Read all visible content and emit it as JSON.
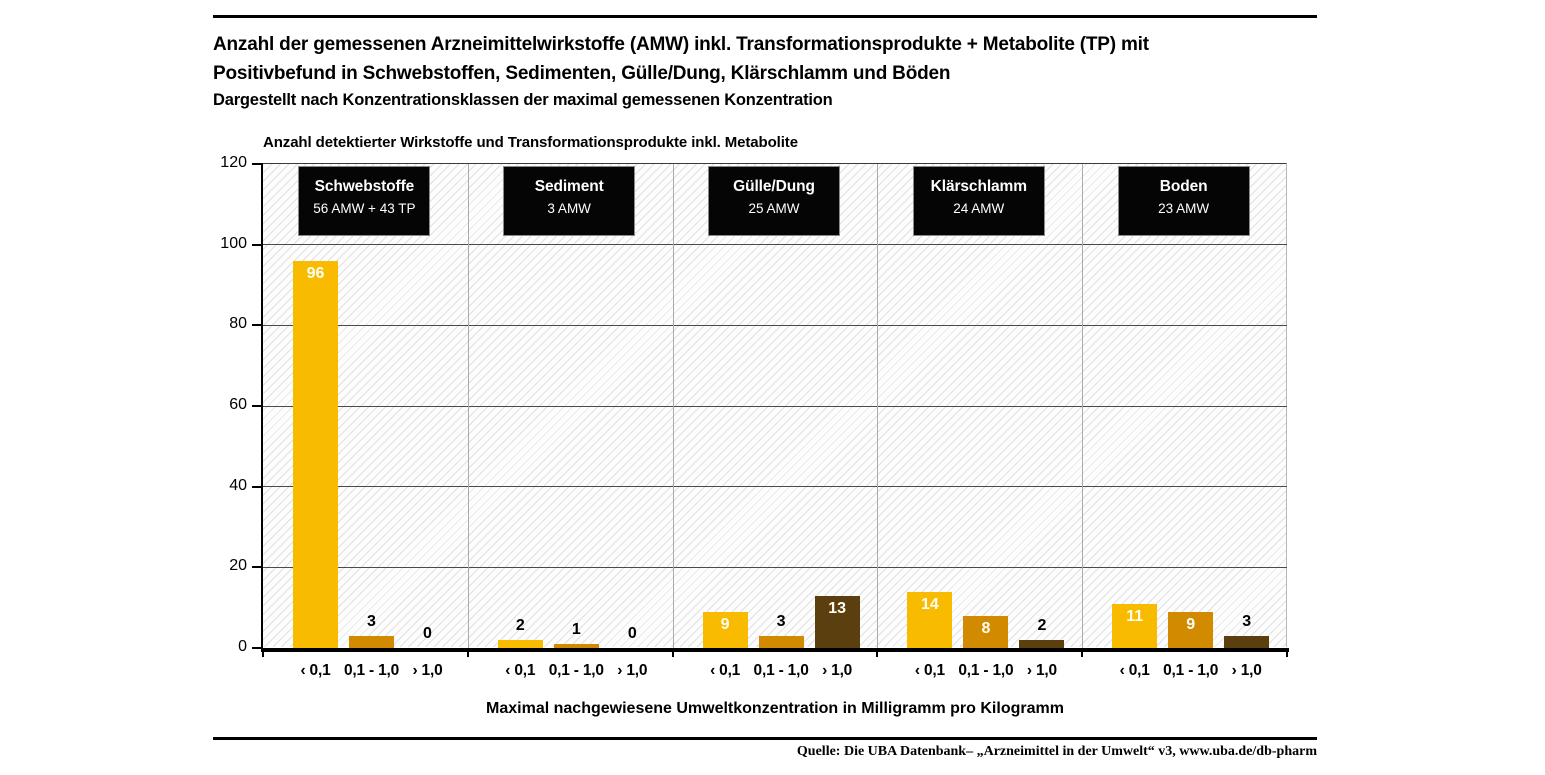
{
  "header": {
    "title_line1": "Anzahl der gemessenen Arzneimittelwirkstoffe (AMW) inkl. Transformationsprodukte + Metabolite (TP) mit",
    "title_line2": "Positivbefund in Schwebstoffen, Sedimenten, Gülle/Dung, Klärschlamm und Böden",
    "subtitle": "Dargestellt nach Konzentrationsklassen der maximal gemessenen Konzentration"
  },
  "chart_data": {
    "type": "bar",
    "title": "Anzahl der gemessenen Arzneimittelwirkstoffe (AMW) inkl. Transformationsprodukte + Metabolite (TP) mit Positivbefund in Schwebstoffen, Sedimenten, Gülle/Dung, Klärschlamm und Böden",
    "subtitle": "Dargestellt nach Konzentrationsklassen der maximal gemessenen Konzentration",
    "axis_title": "Anzahl detektierter Wirkstoffe und Transformationsprodukte inkl. Metabolite",
    "xlabel": "Maximal nachgewiesene Umweltkonzentration in Milligramm pro Kilogramm",
    "ylabel": "Anzahl detektierter Wirkstoffe und Transformationsprodukte inkl. Metabolite",
    "ylim": [
      0,
      120
    ],
    "yticks": [
      0,
      20,
      40,
      60,
      80,
      100,
      120
    ],
    "grid": true,
    "legend_position": "none",
    "categories": [
      "‹ 0,1",
      "0,1 - 1,0",
      "› 1,0"
    ],
    "groups": [
      {
        "name": "Schwebstoffe",
        "badge": "56 AMW + 43 TP",
        "values": [
          96,
          3,
          0
        ]
      },
      {
        "name": "Sediment",
        "badge": "3 AMW",
        "values": [
          2,
          1,
          0
        ]
      },
      {
        "name": "Gülle/Dung",
        "badge": "25 AMW",
        "values": [
          9,
          3,
          13
        ]
      },
      {
        "name": "Klärschlamm",
        "badge": "24 AMW",
        "values": [
          14,
          8,
          2
        ]
      },
      {
        "name": "Boden",
        "badge": "23 AMW",
        "values": [
          11,
          9,
          3
        ]
      }
    ],
    "colors": {
      "bar_lt_01": "#F9BB00",
      "bar_01_10": "#D28A00",
      "bar_gt_10": "#5C3F0E",
      "badge_bg": "#050505",
      "hatch_line": "#c8c8c8"
    }
  },
  "footer": {
    "source": "Quelle: Die UBA Datenbank– „Arzneimittel in der Umwelt“  v3, www.uba.de/db-pharm"
  }
}
